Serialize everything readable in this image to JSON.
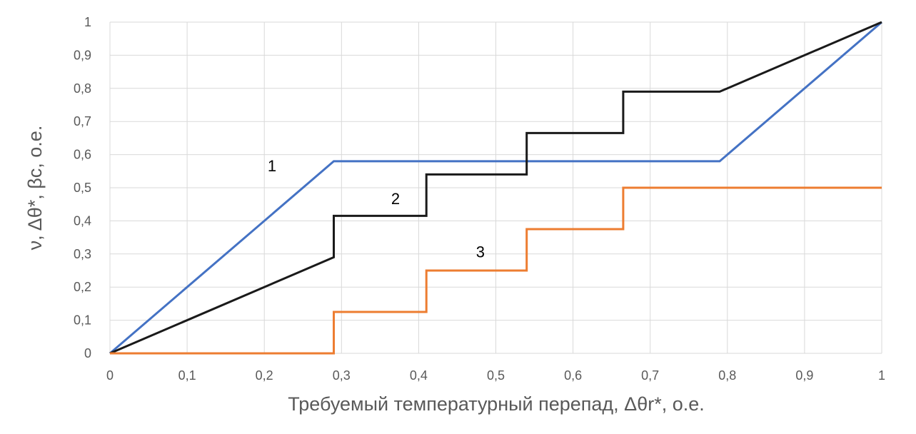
{
  "chart_data": {
    "type": "line",
    "xlabel": "Требуемый температурный перепад, Δθr*, о.е.",
    "ylabel": "ν, Δθ*, βc, о.е.",
    "xlim": [
      0,
      1
    ],
    "ylim": [
      0,
      1
    ],
    "x_ticks": [
      "0",
      "0,1",
      "0,2",
      "0,3",
      "0,4",
      "0,5",
      "0,6",
      "0,7",
      "0,8",
      "0,9",
      "1"
    ],
    "y_ticks": [
      "0",
      "0,1",
      "0,2",
      "0,3",
      "0,4",
      "0,5",
      "0,6",
      "0,7",
      "0,8",
      "0,9",
      "1"
    ],
    "grid": true,
    "series": [
      {
        "name": "1",
        "color": "#4472c4",
        "label_at": [
          0.21,
          0.55
        ],
        "points": [
          [
            0,
            0
          ],
          [
            0.29,
            0.58
          ],
          [
            0.79,
            0.58
          ],
          [
            1,
            1
          ]
        ]
      },
      {
        "name": "2",
        "color": "#1a1a1a",
        "label_at": [
          0.37,
          0.45
        ],
        "points": [
          [
            0,
            0
          ],
          [
            0.29,
            0.29
          ],
          [
            0.29,
            0.415
          ],
          [
            0.41,
            0.415
          ],
          [
            0.41,
            0.54
          ],
          [
            0.54,
            0.54
          ],
          [
            0.54,
            0.665
          ],
          [
            0.665,
            0.665
          ],
          [
            0.665,
            0.79
          ],
          [
            0.79,
            0.79
          ],
          [
            1,
            1
          ]
        ]
      },
      {
        "name": "3",
        "color": "#ed7d31",
        "label_at": [
          0.48,
          0.29
        ],
        "points": [
          [
            0,
            0
          ],
          [
            0.29,
            0
          ],
          [
            0.29,
            0.125
          ],
          [
            0.41,
            0.125
          ],
          [
            0.41,
            0.25
          ],
          [
            0.54,
            0.25
          ],
          [
            0.54,
            0.375
          ],
          [
            0.665,
            0.375
          ],
          [
            0.665,
            0.5
          ],
          [
            1,
            0.5
          ]
        ]
      }
    ]
  }
}
